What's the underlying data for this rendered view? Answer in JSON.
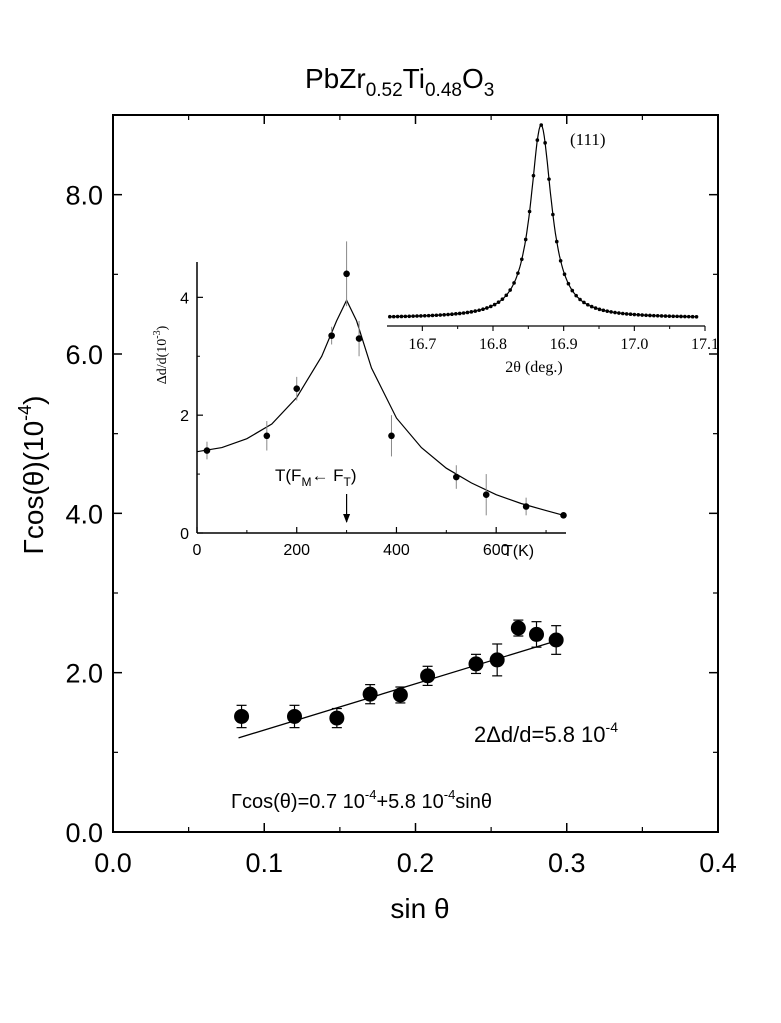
{
  "chart_data": [
    {
      "type": "scatter",
      "title": "PbZr0.52Ti0.48O3",
      "title_parts": {
        "base1": "PbZr",
        "sub1": "0.52",
        "base2": "Ti",
        "sub2": "0.48",
        "base3": "O",
        "sub3": "3"
      },
      "xlabel": "sin θ",
      "ylabel": "Γcos(θ)(10",
      "ylabel_exp": "-4",
      "xlim": [
        0.0,
        0.4
      ],
      "ylim": [
        0.0,
        9.0
      ],
      "xticks": [
        "0.0",
        "0.1",
        "0.2",
        "0.3",
        "0.4"
      ],
      "yticks": [
        "0.0",
        "2.0",
        "4.0",
        "6.0",
        "8.0"
      ],
      "series": [
        {
          "name": "data",
          "x": [
            0.085,
            0.12,
            0.148,
            0.17,
            0.19,
            0.208,
            0.24,
            0.254,
            0.268,
            0.28,
            0.293
          ],
          "y": [
            1.45,
            1.45,
            1.43,
            1.73,
            1.72,
            1.96,
            2.11,
            2.16,
            2.56,
            2.48,
            2.41
          ],
          "err": [
            0.14,
            0.14,
            0.12,
            0.12,
            0.1,
            0.12,
            0.12,
            0.2,
            0.1,
            0.16,
            0.18
          ]
        }
      ],
      "fit": {
        "intercept": 0.7,
        "slope": 5.8,
        "x_range": [
          0.083,
          0.296
        ]
      },
      "annotation_1": {
        "a": "2Δd/d=5.8 10",
        "exp": "-4"
      },
      "annotation_2": {
        "a": "Γcos(θ)=0.7 10",
        "exp1": "-4",
        "b": "+5.8 10",
        "exp2": "-4",
        "c": "sinθ"
      }
    },
    {
      "type": "line",
      "title": "",
      "xlabel": "T(K)",
      "ylabel": "Δd/d(10",
      "ylabel_exp": "-3",
      "ylabel_close": ")",
      "xlim": [
        0,
        740
      ],
      "ylim": [
        0,
        4.6
      ],
      "xticks": [
        "0",
        "200",
        "400",
        "600"
      ],
      "yticks": [
        "0",
        "2",
        "4"
      ],
      "points": {
        "x": [
          20,
          140,
          200,
          270,
          300,
          325,
          390,
          520,
          580,
          660,
          735
        ],
        "y": [
          1.4,
          1.65,
          2.45,
          3.35,
          4.4,
          3.3,
          1.65,
          0.95,
          0.65,
          0.45,
          0.3
        ],
        "err": [
          0.15,
          0.25,
          0.2,
          0.15,
          0.55,
          0.3,
          0.35,
          0.2,
          0.35,
          0.15,
          0.0
        ]
      },
      "curve": {
        "x": [
          0,
          50,
          100,
          150,
          200,
          250,
          280,
          300,
          320,
          350,
          400,
          450,
          500,
          550,
          600,
          650,
          700,
          735
        ],
        "y": [
          1.38,
          1.45,
          1.6,
          1.85,
          2.3,
          3.0,
          3.6,
          3.95,
          3.6,
          2.8,
          1.95,
          1.45,
          1.1,
          0.85,
          0.65,
          0.5,
          0.38,
          0.3
        ]
      },
      "annotation": {
        "T": "T(F",
        "sub_m": "M",
        "arrow": "←",
        "F": " F",
        "sub_t": "T",
        "close": ")"
      },
      "arrow_at_x": 300
    },
    {
      "type": "line",
      "title": "(111)",
      "xlabel": "2θ (deg.)",
      "xlim": [
        16.65,
        17.1
      ],
      "ylim": [
        0,
        1
      ],
      "xticks": [
        "16.7",
        "16.8",
        "16.9",
        "17.0",
        "17.1"
      ],
      "peak": {
        "center": 16.868,
        "height": 1.0,
        "width": 0.018,
        "baseline": 0.02
      },
      "x_start": 16.654,
      "x_end": 17.088,
      "points_count": 80
    }
  ]
}
